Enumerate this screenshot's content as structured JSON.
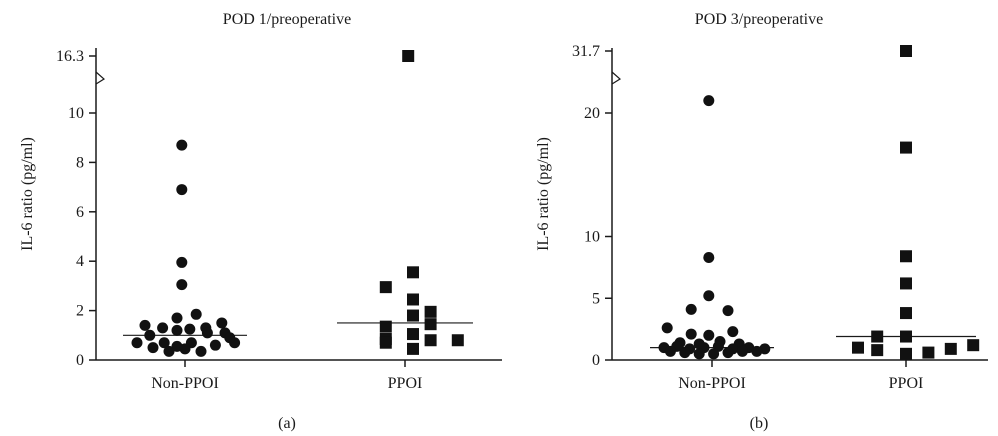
{
  "chart_data": [
    {
      "type": "scatter",
      "panel_label": "(a)",
      "title": "POD 1/preoperative",
      "ylabel": "IL-6 ratio (pg/ml)",
      "categories": [
        "Non-PPOI",
        "PPOI"
      ],
      "y_ticks": [
        "0",
        "2",
        "4",
        "6",
        "8",
        "10",
        "16.3"
      ],
      "ylim": [
        0,
        16.3
      ],
      "axis_break": true,
      "markers": [
        "circle",
        "square"
      ],
      "groups": [
        {
          "category": "Non-PPOI",
          "median": 1.0,
          "points": [
            {
              "x": -0.02,
              "y": 8.7
            },
            {
              "x": -0.02,
              "y": 6.9
            },
            {
              "x": -0.02,
              "y": 3.95
            },
            {
              "x": -0.02,
              "y": 3.05
            },
            {
              "x": -0.25,
              "y": 1.4
            },
            {
              "x": -0.14,
              "y": 1.3
            },
            {
              "x": -0.05,
              "y": 1.2
            },
            {
              "x": 0.03,
              "y": 1.25
            },
            {
              "x": 0.13,
              "y": 1.3
            },
            {
              "x": 0.23,
              "y": 1.5
            },
            {
              "x": -0.05,
              "y": 1.7
            },
            {
              "x": 0.07,
              "y": 1.85
            },
            {
              "x": -0.3,
              "y": 0.7
            },
            {
              "x": -0.22,
              "y": 1.0
            },
            {
              "x": -0.13,
              "y": 0.7
            },
            {
              "x": -0.05,
              "y": 0.55
            },
            {
              "x": 0.04,
              "y": 0.7
            },
            {
              "x": 0.14,
              "y": 1.1
            },
            {
              "x": 0.25,
              "y": 1.1
            },
            {
              "x": 0.31,
              "y": 0.7
            },
            {
              "x": -0.2,
              "y": 0.5
            },
            {
              "x": -0.1,
              "y": 0.35
            },
            {
              "x": 0.0,
              "y": 0.45
            },
            {
              "x": 0.1,
              "y": 0.35
            },
            {
              "x": 0.19,
              "y": 0.6
            },
            {
              "x": 0.28,
              "y": 0.9
            }
          ]
        },
        {
          "category": "PPOI",
          "median": 1.5,
          "points": [
            {
              "x": 0.02,
              "y": 16.3
            },
            {
              "x": 0.05,
              "y": 3.55
            },
            {
              "x": -0.12,
              "y": 2.95
            },
            {
              "x": 0.05,
              "y": 2.45
            },
            {
              "x": 0.05,
              "y": 1.8
            },
            {
              "x": 0.16,
              "y": 1.95
            },
            {
              "x": -0.12,
              "y": 1.35
            },
            {
              "x": 0.16,
              "y": 1.45
            },
            {
              "x": 0.05,
              "y": 1.05
            },
            {
              "x": -0.12,
              "y": 0.85
            },
            {
              "x": -0.12,
              "y": 0.7
            },
            {
              "x": 0.16,
              "y": 0.8
            },
            {
              "x": 0.33,
              "y": 0.8
            },
            {
              "x": 0.05,
              "y": 0.45
            }
          ]
        }
      ]
    },
    {
      "type": "scatter",
      "panel_label": "(b)",
      "title": "POD 3/preoperative",
      "ylabel": "IL-6 ratio (pg/ml)",
      "categories": [
        "Non-PPOI",
        "PPOI"
      ],
      "y_ticks": [
        "0",
        "5",
        "10",
        "20",
        "31.7"
      ],
      "ylim": [
        0,
        31.7
      ],
      "axis_break": true,
      "markers": [
        "circle",
        "square"
      ],
      "groups": [
        {
          "category": "Non-PPOI",
          "median": 1.0,
          "points": [
            {
              "x": -0.02,
              "y": 21.0
            },
            {
              "x": -0.02,
              "y": 8.3
            },
            {
              "x": -0.02,
              "y": 5.2
            },
            {
              "x": -0.13,
              "y": 4.1
            },
            {
              "x": 0.1,
              "y": 4.0
            },
            {
              "x": -0.28,
              "y": 2.6
            },
            {
              "x": -0.13,
              "y": 2.1
            },
            {
              "x": -0.02,
              "y": 2.0
            },
            {
              "x": 0.13,
              "y": 2.3
            },
            {
              "x": -0.2,
              "y": 1.4
            },
            {
              "x": -0.08,
              "y": 1.3
            },
            {
              "x": 0.05,
              "y": 1.5
            },
            {
              "x": 0.17,
              "y": 1.3
            },
            {
              "x": -0.3,
              "y": 1.0
            },
            {
              "x": -0.22,
              "y": 1.1
            },
            {
              "x": -0.14,
              "y": 0.9
            },
            {
              "x": -0.05,
              "y": 1.0
            },
            {
              "x": 0.04,
              "y": 1.1
            },
            {
              "x": 0.13,
              "y": 0.9
            },
            {
              "x": 0.23,
              "y": 1.0
            },
            {
              "x": 0.33,
              "y": 0.9
            },
            {
              "x": -0.26,
              "y": 0.7
            },
            {
              "x": -0.17,
              "y": 0.6
            },
            {
              "x": -0.08,
              "y": 0.5
            },
            {
              "x": 0.01,
              "y": 0.5
            },
            {
              "x": 0.1,
              "y": 0.6
            },
            {
              "x": 0.19,
              "y": 0.7
            },
            {
              "x": 0.28,
              "y": 0.7
            }
          ]
        },
        {
          "category": "PPOI",
          "median": 1.9,
          "points": [
            {
              "x": 0.0,
              "y": 31.7
            },
            {
              "x": 0.0,
              "y": 17.2
            },
            {
              "x": 0.0,
              "y": 8.4
            },
            {
              "x": 0.0,
              "y": 6.2
            },
            {
              "x": 0.0,
              "y": 3.8
            },
            {
              "x": -0.18,
              "y": 1.9
            },
            {
              "x": 0.0,
              "y": 1.9
            },
            {
              "x": -0.3,
              "y": 1.0
            },
            {
              "x": -0.18,
              "y": 0.8
            },
            {
              "x": 0.0,
              "y": 0.5
            },
            {
              "x": 0.14,
              "y": 0.6
            },
            {
              "x": 0.28,
              "y": 0.9
            },
            {
              "x": 0.42,
              "y": 1.2
            }
          ]
        }
      ]
    }
  ]
}
